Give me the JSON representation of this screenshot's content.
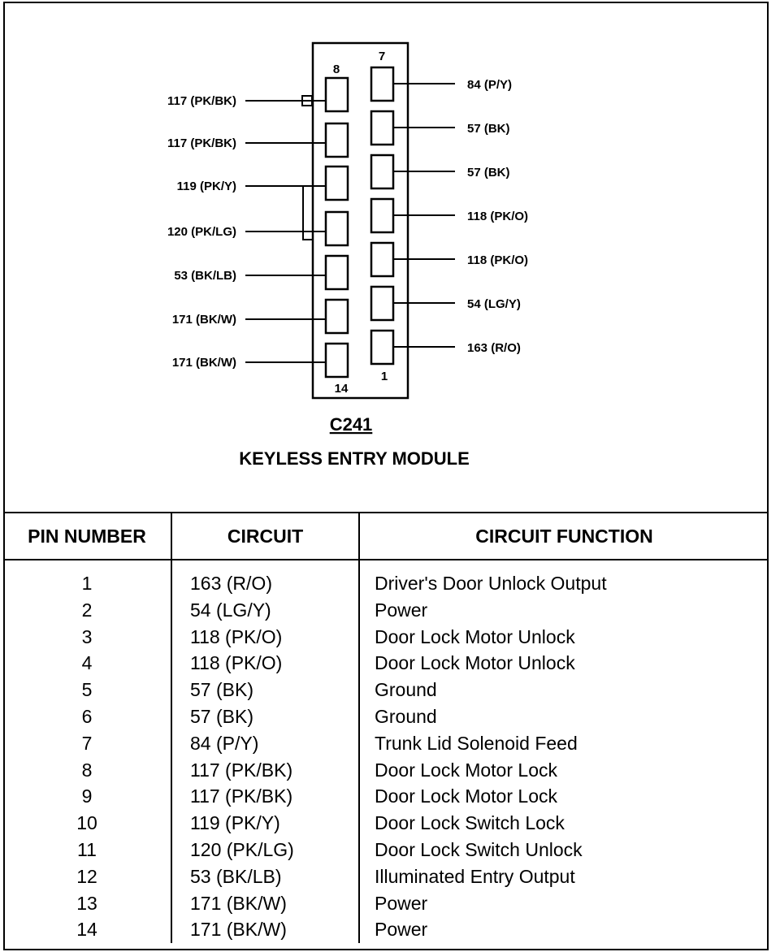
{
  "connector": {
    "name": "C241",
    "title": "KEYLESS ENTRY MODULE",
    "pin_labels": {
      "top_left": "8",
      "top_right": "7",
      "bottom_left": "14",
      "bottom_right": "1"
    },
    "left_wires": [
      "117 (PK/BK)",
      "117 (PK/BK)",
      "119 (PK/Y)",
      "120 (PK/LG)",
      "53 (BK/LB)",
      "171 (BK/W)",
      "171 (BK/W)"
    ],
    "right_wires": [
      "84 (P/Y)",
      "57 (BK)",
      "57 (BK)",
      "118 (PK/O)",
      "118 (PK/O)",
      "54 (LG/Y)",
      "163 (R/O)"
    ]
  },
  "table": {
    "headers": [
      "PIN NUMBER",
      "CIRCUIT",
      "CIRCUIT FUNCTION"
    ],
    "rows": [
      [
        "1",
        "163  (R/O)",
        "Driver's Door Unlock Output"
      ],
      [
        "2",
        "54  (LG/Y)",
        "Power"
      ],
      [
        "3",
        "118  (PK/O)",
        "Door Lock Motor Unlock"
      ],
      [
        "4",
        "118  (PK/O)",
        "Door Lock Motor Unlock"
      ],
      [
        "5",
        "57  (BK)",
        "Ground"
      ],
      [
        "6",
        "57  (BK)",
        "Ground"
      ],
      [
        "7",
        "84  (P/Y)",
        "Trunk Lid Solenoid Feed"
      ],
      [
        "8",
        "117  (PK/BK)",
        "Door Lock Motor Lock"
      ],
      [
        "9",
        "117  (PK/BK)",
        "Door Lock Motor Lock"
      ],
      [
        "10",
        "119  (PK/Y)",
        "Door Lock Switch Lock"
      ],
      [
        "11",
        "120  (PK/LG)",
        "Door Lock Switch Unlock"
      ],
      [
        "12",
        "53  (BK/LB)",
        "Illuminated Entry Output"
      ],
      [
        "13",
        "171  (BK/W)",
        "Power"
      ],
      [
        "14",
        "171  (BK/W)",
        "Power"
      ]
    ]
  }
}
